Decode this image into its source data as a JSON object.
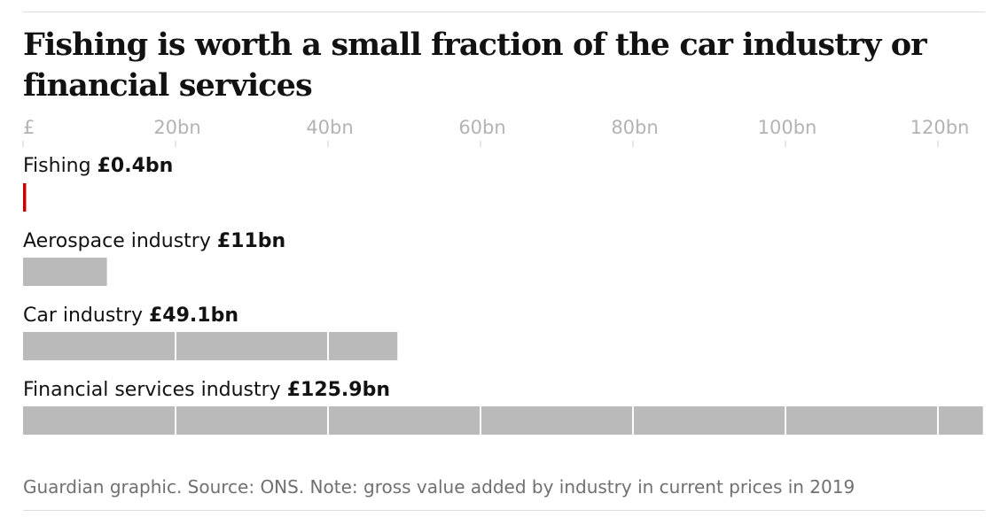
{
  "header": {
    "title": "Fishing is worth a small fraction of the car industry or financial services"
  },
  "chart_data": {
    "type": "bar",
    "orientation": "horizontal",
    "title": "Fishing is worth a small fraction of the car industry or financial services",
    "xlim": [
      0,
      126
    ],
    "x_ticks": [
      {
        "value": 0,
        "label": "£"
      },
      {
        "value": 20,
        "label": "20bn"
      },
      {
        "value": 40,
        "label": "40bn"
      },
      {
        "value": 60,
        "label": "60bn"
      },
      {
        "value": 80,
        "label": "80bn"
      },
      {
        "value": 100,
        "label": "100bn"
      },
      {
        "value": 120,
        "label": "120bn"
      }
    ],
    "categories": [
      "Fishing",
      "Aerospace industry",
      "Car industry",
      "Financial services industry"
    ],
    "values": [
      0.4,
      11,
      49.1,
      125.9
    ],
    "value_labels": [
      "£0.4bn",
      "£11bn",
      "£49.1bn",
      "£125.9bn"
    ],
    "bar_colors": [
      "#c70000",
      "#bababa",
      "#bababa",
      "#bababa"
    ],
    "grid": true,
    "legend": "none"
  },
  "footer": {
    "source": "Guardian graphic. Source: ONS. Note: gross value added by industry in current prices in 2019"
  }
}
